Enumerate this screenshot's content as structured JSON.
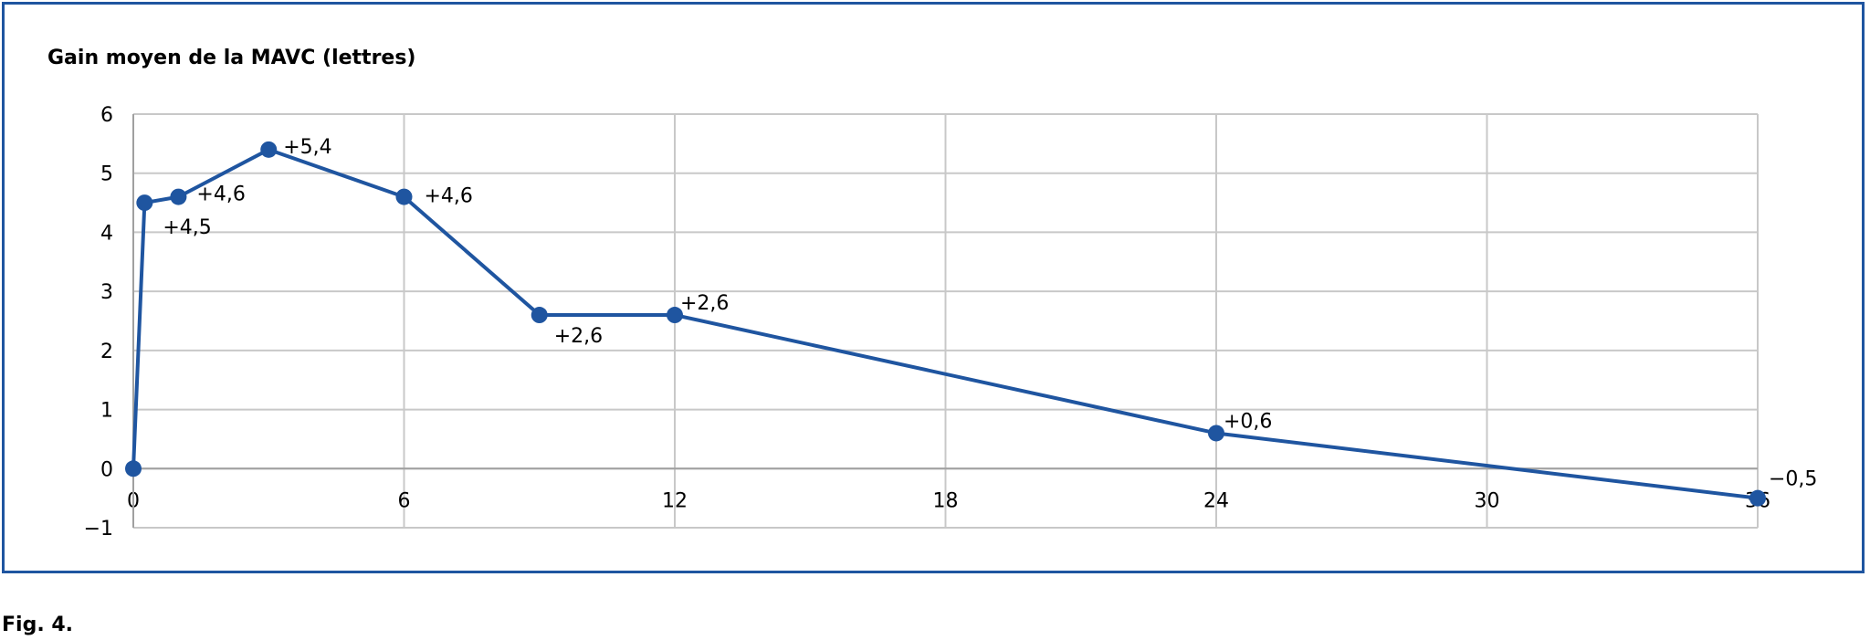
{
  "chart_data": {
    "type": "line",
    "title": "Gain moyen de la MAVC (lettres)",
    "xlim": [
      0,
      36
    ],
    "ylim": [
      -1,
      6
    ],
    "x_ticks": [
      "0",
      "6",
      "12",
      "18",
      "24",
      "30",
      "36"
    ],
    "y_ticks": [
      "−1",
      "0",
      "1",
      "2",
      "3",
      "4",
      "5",
      "6"
    ],
    "grid": true,
    "series": [
      {
        "color": "#1f55a0",
        "points": [
          {
            "x": 0,
            "y": 0
          },
          {
            "x": 0.25,
            "y": 4.5,
            "label": "+4,5"
          },
          {
            "x": 1,
            "y": 4.6,
            "label": "+4,6"
          },
          {
            "x": 3,
            "y": 5.4,
            "label": "+5,4"
          },
          {
            "x": 6,
            "y": 4.6,
            "label": "+4,6"
          },
          {
            "x": 9,
            "y": 2.6,
            "label": "+2,6"
          },
          {
            "x": 12,
            "y": 2.6,
            "label": "+2,6"
          },
          {
            "x": 24,
            "y": 0.6,
            "label": "+0,6"
          },
          {
            "x": 36,
            "y": -0.5,
            "label": "−0,5"
          }
        ]
      }
    ]
  },
  "caption": "Fig. 4."
}
